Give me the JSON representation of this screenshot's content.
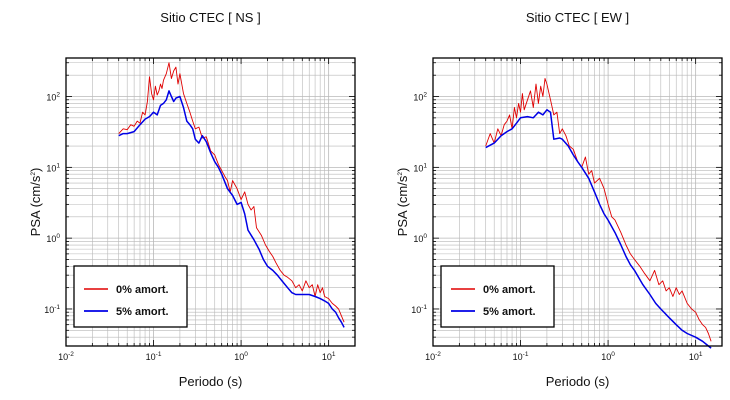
{
  "colors": {
    "undamped": "#e00000",
    "damped": "#0000e6",
    "grid": "#b8b8b8",
    "frame": "#000000"
  },
  "chart_data": [
    {
      "type": "line",
      "title": "Sitio CTEC [ NS ]",
      "xlabel": "Periodo (s)",
      "ylabel_main": "PSA (cm/s",
      "ylabel_sup": "2",
      "ylabel_end": ")",
      "xscale": "log",
      "yscale": "log",
      "xlim": [
        0.01,
        20
      ],
      "ylim": [
        0.03,
        350
      ],
      "grid": true,
      "legend_position": "bottom-left",
      "x_ticks": [
        {
          "base": "10",
          "exp": "-2"
        },
        {
          "base": "10",
          "exp": "-1"
        },
        {
          "base": "10",
          "exp": "0"
        },
        {
          "base": "10",
          "exp": "1"
        }
      ],
      "y_ticks": [
        {
          "base": "10",
          "exp": "-1"
        },
        {
          "base": "10",
          "exp": "0"
        },
        {
          "base": "10",
          "exp": "1"
        },
        {
          "base": "10",
          "exp": "2"
        }
      ],
      "series": [
        {
          "name": "0% amort.",
          "color": "#e00000",
          "x": [
            0.04,
            0.045,
            0.05,
            0.055,
            0.06,
            0.065,
            0.07,
            0.075,
            0.08,
            0.085,
            0.09,
            0.095,
            0.1,
            0.105,
            0.11,
            0.115,
            0.12,
            0.125,
            0.13,
            0.14,
            0.15,
            0.16,
            0.17,
            0.18,
            0.19,
            0.2,
            0.22,
            0.24,
            0.26,
            0.28,
            0.3,
            0.33,
            0.36,
            0.4,
            0.45,
            0.5,
            0.55,
            0.6,
            0.65,
            0.7,
            0.75,
            0.8,
            0.9,
            1.0,
            1.1,
            1.2,
            1.3,
            1.4,
            1.5,
            1.7,
            1.9,
            2.1,
            2.3,
            2.5,
            2.8,
            3.1,
            3.4,
            3.8,
            4.2,
            4.6,
            5.0,
            5.5,
            6.0,
            6.5,
            7.0,
            7.5,
            8.0,
            8.5,
            9.0,
            10,
            11,
            12,
            13,
            14,
            15
          ],
          "y": [
            30,
            35,
            34,
            40,
            38,
            45,
            42,
            60,
            55,
            85,
            190,
            110,
            90,
            140,
            105,
            120,
            150,
            130,
            170,
            210,
            300,
            180,
            230,
            260,
            150,
            210,
            110,
            80,
            60,
            45,
            35,
            37,
            26,
            27,
            17,
            15,
            11,
            9,
            7.5,
            6.5,
            4.5,
            6.5,
            5.0,
            3.5,
            4.5,
            3.0,
            2.5,
            2.8,
            1.4,
            1.1,
            0.8,
            0.65,
            0.55,
            0.45,
            0.35,
            0.3,
            0.28,
            0.25,
            0.2,
            0.22,
            0.18,
            0.25,
            0.2,
            0.22,
            0.15,
            0.22,
            0.17,
            0.2,
            0.15,
            0.14,
            0.12,
            0.11,
            0.1,
            0.08,
            0.065
          ]
        },
        {
          "name": "5% amort.",
          "color": "#0000e6",
          "x": [
            0.04,
            0.045,
            0.05,
            0.06,
            0.07,
            0.08,
            0.09,
            0.1,
            0.11,
            0.12,
            0.13,
            0.14,
            0.15,
            0.16,
            0.17,
            0.18,
            0.2,
            0.22,
            0.24,
            0.26,
            0.28,
            0.3,
            0.33,
            0.36,
            0.4,
            0.45,
            0.5,
            0.55,
            0.6,
            0.7,
            0.8,
            0.9,
            1.0,
            1.1,
            1.2,
            1.4,
            1.6,
            1.8,
            2.0,
            2.3,
            2.6,
            3.0,
            3.4,
            3.8,
            4.2,
            4.6,
            5.0,
            6.0,
            7.0,
            8.0,
            9.0,
            10,
            11,
            12,
            13,
            14,
            15
          ],
          "y": [
            28,
            30,
            30,
            32,
            40,
            48,
            52,
            60,
            55,
            75,
            80,
            90,
            120,
            100,
            85,
            95,
            100,
            70,
            45,
            40,
            35,
            25,
            22,
            28,
            23,
            16,
            12,
            10,
            8.0,
            5.0,
            4.0,
            3.0,
            3.2,
            2.2,
            1.3,
            0.95,
            0.7,
            0.5,
            0.4,
            0.35,
            0.3,
            0.24,
            0.2,
            0.17,
            0.16,
            0.16,
            0.16,
            0.16,
            0.15,
            0.14,
            0.13,
            0.12,
            0.1,
            0.09,
            0.075,
            0.065,
            0.055
          ]
        }
      ]
    },
    {
      "type": "line",
      "title": "Sitio CTEC [ EW ]",
      "xlabel": "Periodo (s)",
      "ylabel_main": "PSA (cm/s",
      "ylabel_sup": "2",
      "ylabel_end": ")",
      "xscale": "log",
      "yscale": "log",
      "xlim": [
        0.01,
        20
      ],
      "ylim": [
        0.03,
        350
      ],
      "grid": true,
      "legend_position": "bottom-left",
      "x_ticks": [
        {
          "base": "10",
          "exp": "-2"
        },
        {
          "base": "10",
          "exp": "-1"
        },
        {
          "base": "10",
          "exp": "0"
        },
        {
          "base": "10",
          "exp": "1"
        }
      ],
      "y_ticks": [
        {
          "base": "10",
          "exp": "-1"
        },
        {
          "base": "10",
          "exp": "0"
        },
        {
          "base": "10",
          "exp": "1"
        },
        {
          "base": "10",
          "exp": "2"
        }
      ],
      "series": [
        {
          "name": "0% amort.",
          "color": "#e00000",
          "x": [
            0.04,
            0.045,
            0.05,
            0.055,
            0.06,
            0.065,
            0.07,
            0.075,
            0.08,
            0.085,
            0.09,
            0.095,
            0.1,
            0.105,
            0.11,
            0.12,
            0.13,
            0.14,
            0.15,
            0.16,
            0.17,
            0.18,
            0.19,
            0.2,
            0.22,
            0.24,
            0.26,
            0.28,
            0.3,
            0.33,
            0.36,
            0.4,
            0.45,
            0.5,
            0.55,
            0.6,
            0.65,
            0.7,
            0.8,
            0.9,
            1.0,
            1.1,
            1.2,
            1.4,
            1.6,
            1.8,
            2.0,
            2.3,
            2.6,
            3.0,
            3.4,
            3.8,
            4.2,
            4.6,
            5.0,
            5.5,
            6.0,
            6.5,
            7.0,
            8.0,
            9.0,
            10,
            11,
            12,
            13,
            14,
            15
          ],
          "y": [
            20,
            30,
            22,
            35,
            28,
            40,
            45,
            55,
            35,
            70,
            50,
            80,
            60,
            110,
            65,
            90,
            120,
            70,
            150,
            80,
            140,
            100,
            180,
            150,
            90,
            55,
            60,
            30,
            35,
            28,
            20,
            18,
            12,
            10,
            14,
            8,
            9,
            6,
            7,
            5,
            3.0,
            2.0,
            1.8,
            1.2,
            0.8,
            0.6,
            0.5,
            0.4,
            0.32,
            0.25,
            0.35,
            0.22,
            0.25,
            0.18,
            0.2,
            0.15,
            0.2,
            0.16,
            0.18,
            0.12,
            0.1,
            0.09,
            0.07,
            0.06,
            0.055,
            0.045,
            0.035
          ]
        },
        {
          "name": "5% amort.",
          "color": "#0000e6",
          "x": [
            0.04,
            0.05,
            0.06,
            0.07,
            0.08,
            0.09,
            0.1,
            0.12,
            0.14,
            0.15,
            0.16,
            0.18,
            0.2,
            0.22,
            0.24,
            0.28,
            0.3,
            0.35,
            0.4,
            0.45,
            0.5,
            0.6,
            0.7,
            0.8,
            0.9,
            1.0,
            1.2,
            1.4,
            1.6,
            1.8,
            2.0,
            2.5,
            3.0,
            3.5,
            4.0,
            5.0,
            6.0,
            7.0,
            8.0,
            10,
            12,
            14,
            15
          ],
          "y": [
            19,
            22,
            28,
            32,
            35,
            42,
            50,
            52,
            50,
            55,
            60,
            55,
            65,
            60,
            25,
            26,
            25,
            20,
            15,
            12,
            10,
            7,
            4.5,
            3.0,
            2.2,
            1.8,
            1.2,
            0.8,
            0.55,
            0.42,
            0.35,
            0.22,
            0.16,
            0.12,
            0.1,
            0.075,
            0.06,
            0.05,
            0.045,
            0.04,
            0.035,
            0.03,
            0.028
          ]
        }
      ]
    }
  ]
}
